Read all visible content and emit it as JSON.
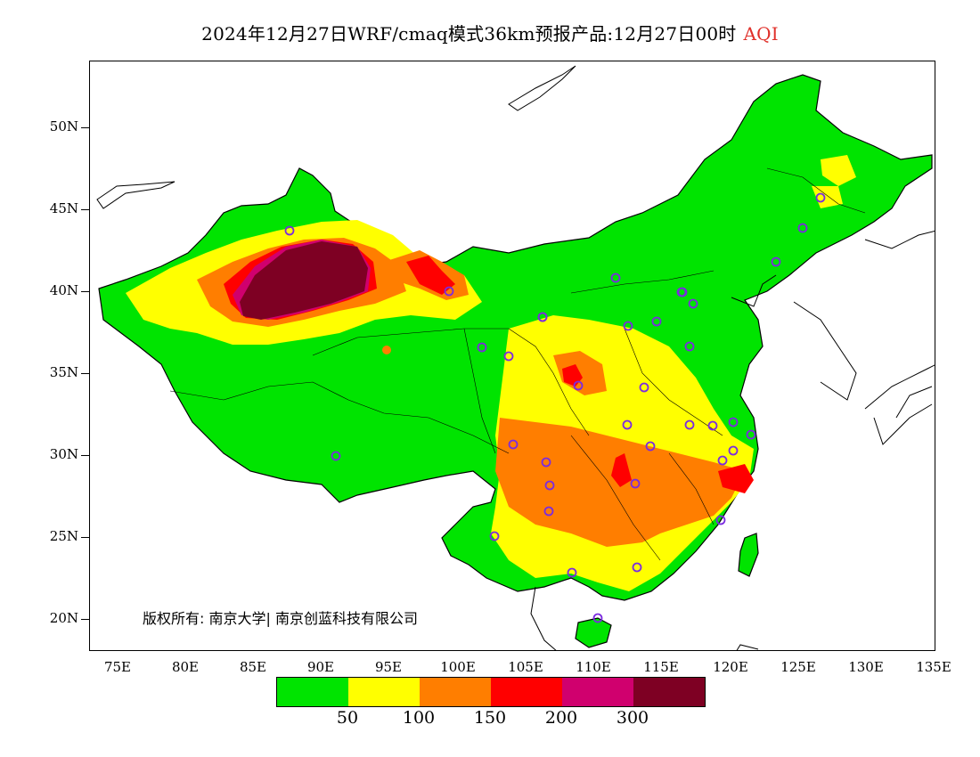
{
  "title": {
    "main": "2024年12月27日WRF/cmaq模式36km预报产品:12月27日00时",
    "variable": "AQI"
  },
  "axes": {
    "lat_labels": [
      "50N",
      "45N",
      "40N",
      "35N",
      "30N",
      "25N",
      "20N"
    ],
    "lon_labels": [
      "75E",
      "80E",
      "85E",
      "90E",
      "95E",
      "100E",
      "105E",
      "110E",
      "115E",
      "120E",
      "125E",
      "130E",
      "135E"
    ]
  },
  "copyright": "版权所有: 南京大学| 南京创蓝科技有限公司",
  "legend": {
    "colors": [
      "#00e400",
      "#ffff00",
      "#ff7e00",
      "#ff0000",
      "#d0006e",
      "#7e0023"
    ],
    "ticks": [
      "50",
      "100",
      "150",
      "200",
      "300"
    ]
  },
  "map_colors": {
    "land_outside": "#ffffff",
    "border": "#000000",
    "station_marker": "#7b2be0"
  }
}
